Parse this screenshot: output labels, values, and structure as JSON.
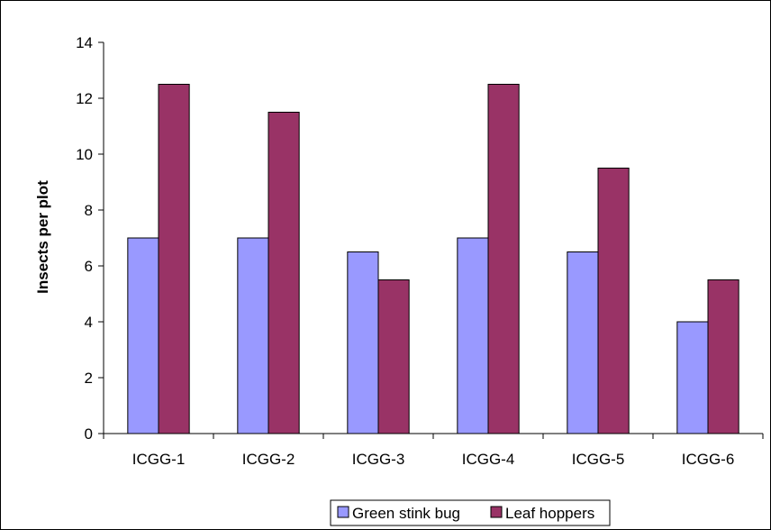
{
  "chart_data": {
    "type": "bar",
    "title": "",
    "xlabel": "",
    "ylabel": "Insects per plot",
    "ylim": [
      0,
      14
    ],
    "yticks": [
      0,
      2,
      4,
      6,
      8,
      10,
      12,
      14
    ],
    "categories": [
      "ICGG-1",
      "ICGG-2",
      "ICGG-3",
      "ICGG-4",
      "ICGG-5",
      "ICGG-6"
    ],
    "series": [
      {
        "name": "Green stink bug",
        "values": [
          7,
          7,
          6.5,
          7,
          6.5,
          4
        ],
        "color": "#9999ff"
      },
      {
        "name": "Leaf hoppers",
        "values": [
          12.5,
          11.5,
          5.5,
          12.5,
          9.5,
          5.5
        ],
        "color": "#993366"
      }
    ],
    "grid": false,
    "legend_position": "bottom"
  }
}
